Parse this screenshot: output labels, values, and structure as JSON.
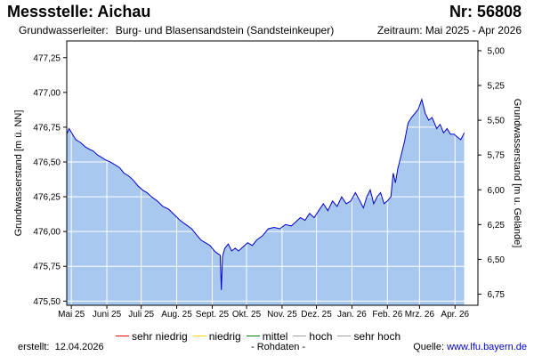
{
  "header": {
    "title": "Messstelle: Aichau",
    "number": "Nr: 56808",
    "aquifer_label": "Grundwasserleiter:",
    "aquifer_value": "Burg- und Blasensandstein (Sandsteinkeuper)",
    "period": "Zeitraum: Mai 2025 - Apr 2026"
  },
  "legend": {
    "items": [
      {
        "label": "sehr niedrig",
        "color": "#ff0000"
      },
      {
        "label": "niedrig",
        "color": "#ffd700"
      },
      {
        "label": "mittel",
        "color": "#008000"
      },
      {
        "label": "hoch",
        "color": "#a0a0a0"
      },
      {
        "label": "sehr hoch",
        "color": "#a0a0a0"
      }
    ]
  },
  "footer": {
    "created_label": "erstellt:",
    "created_date": "12.04.2026",
    "raw_data": "- Rohdaten -",
    "source_label": "Quelle:",
    "source_url": "www.lfu.bayern.de"
  },
  "colors": {
    "line": "#0000cc",
    "fill": "#a8c8f0",
    "grid": "#ffffff",
    "axis": "#000000"
  },
  "chart_data": {
    "type": "area",
    "xlabel": "",
    "ylabel": "Grundwasserstand [m ü. NN]",
    "ylabel_right": "Grundwasserstand [m u. Gelände]",
    "ylim": [
      475.47,
      477.37
    ],
    "ylim_right": [
      6.83,
      4.93
    ],
    "yticks": [
      475.5,
      475.75,
      476.0,
      476.25,
      476.5,
      476.75,
      477.0,
      477.25
    ],
    "ytick_labels": [
      "475,50",
      "475,75",
      "476,00",
      "476,25",
      "476,50",
      "476,75",
      "477,00",
      "477,25"
    ],
    "yticks_right": [
      6.75,
      6.5,
      6.25,
      6.0,
      5.75,
      5.5,
      5.25,
      5.0
    ],
    "ytick_labels_right": [
      "6,75",
      "6,50",
      "6,25",
      "6,00",
      "5,75",
      "5,50",
      "5,25",
      "5,00"
    ],
    "xlim": [
      "2025-04-27",
      "2026-04-21"
    ],
    "xticks": [
      "2025-05-01",
      "2025-06-01",
      "2025-07-01",
      "2025-08-01",
      "2025-09-01",
      "2025-10-01",
      "2025-11-01",
      "2025-12-01",
      "2026-01-01",
      "2026-02-01",
      "2026-03-01",
      "2026-04-01"
    ],
    "xtick_labels": [
      "Mai 25",
      "Juni 25",
      "Juli 25",
      "Aug. 25",
      "Sept. 25",
      "Okt. 25",
      "Nov. 25",
      "Dez. 25",
      "Jan. 26",
      "Feb. 26",
      "Mrz. 26",
      "Apr. 26"
    ],
    "grid": true,
    "series": [
      {
        "x": [
          "2025-04-27",
          "2025-04-29",
          "2025-05-02",
          "2025-05-05",
          "2025-05-09",
          "2025-05-13",
          "2025-05-17",
          "2025-05-20",
          "2025-05-24",
          "2025-05-28",
          "2025-06-01",
          "2025-06-04",
          "2025-06-08",
          "2025-06-12",
          "2025-06-16",
          "2025-06-20",
          "2025-06-24",
          "2025-06-28",
          "2025-07-02",
          "2025-07-06",
          "2025-07-10",
          "2025-07-15",
          "2025-07-20",
          "2025-07-25",
          "2025-07-30",
          "2025-08-04",
          "2025-08-09",
          "2025-08-14",
          "2025-08-18",
          "2025-08-22",
          "2025-08-26",
          "2025-08-30",
          "2025-09-03",
          "2025-09-06",
          "2025-09-08",
          "2025-09-09",
          "2025-09-10",
          "2025-09-12",
          "2025-09-15",
          "2025-09-18",
          "2025-09-21",
          "2025-09-24",
          "2025-09-28",
          "2025-10-02",
          "2025-10-06",
          "2025-10-10",
          "2025-10-15",
          "2025-10-20",
          "2025-10-25",
          "2025-10-30",
          "2025-11-04",
          "2025-11-09",
          "2025-11-13",
          "2025-11-17",
          "2025-11-21",
          "2025-11-25",
          "2025-11-29",
          "2025-12-03",
          "2025-12-07",
          "2025-12-11",
          "2025-12-15",
          "2025-12-19",
          "2025-12-23",
          "2025-12-27",
          "2025-12-31",
          "2026-01-04",
          "2026-01-08",
          "2026-01-11",
          "2026-01-14",
          "2026-01-17",
          "2026-01-20",
          "2026-01-23",
          "2026-01-26",
          "2026-01-29",
          "2026-02-01",
          "2026-02-04",
          "2026-02-06",
          "2026-02-08",
          "2026-02-10",
          "2026-02-13",
          "2026-02-16",
          "2026-02-19",
          "2026-02-22",
          "2026-02-25",
          "2026-02-28",
          "2026-03-03",
          "2026-03-06",
          "2026-03-09",
          "2026-03-12",
          "2026-03-14",
          "2026-03-16",
          "2026-03-19",
          "2026-03-22",
          "2026-03-25",
          "2026-03-28",
          "2026-03-31",
          "2026-04-03",
          "2026-04-06",
          "2026-04-09"
        ],
        "values": [
          476.7,
          476.74,
          476.7,
          476.66,
          476.64,
          476.61,
          476.59,
          476.58,
          476.55,
          476.53,
          476.51,
          476.5,
          476.48,
          476.46,
          476.42,
          476.4,
          476.37,
          476.33,
          476.3,
          476.28,
          476.25,
          476.22,
          476.18,
          476.16,
          476.12,
          476.08,
          476.05,
          476.02,
          475.98,
          475.94,
          475.92,
          475.9,
          475.86,
          475.84,
          475.83,
          475.58,
          475.82,
          475.88,
          475.91,
          475.86,
          475.88,
          475.86,
          475.89,
          475.92,
          475.9,
          475.94,
          475.97,
          476.02,
          476.03,
          476.02,
          476.05,
          476.04,
          476.07,
          476.1,
          476.08,
          476.13,
          476.1,
          476.15,
          476.2,
          476.15,
          476.22,
          476.18,
          476.25,
          476.2,
          476.22,
          476.28,
          476.22,
          476.17,
          476.25,
          476.3,
          476.2,
          476.25,
          476.28,
          476.2,
          476.22,
          476.25,
          476.42,
          476.35,
          476.45,
          476.55,
          476.65,
          476.78,
          476.82,
          476.85,
          476.88,
          476.95,
          476.85,
          476.8,
          476.82,
          476.78,
          476.74,
          476.77,
          476.71,
          476.74,
          476.7,
          476.7,
          476.68,
          476.66,
          476.71
        ]
      }
    ]
  }
}
